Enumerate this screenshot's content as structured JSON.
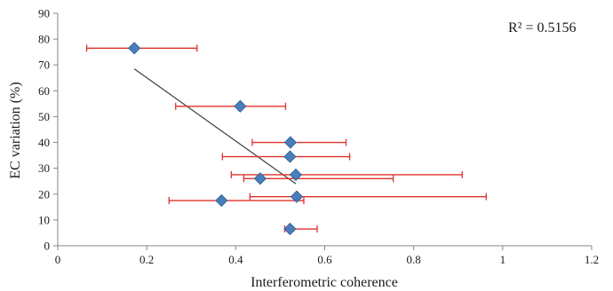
{
  "chart_data": {
    "type": "scatter",
    "xlabel": "Interferometric coherence",
    "ylabel": "EC variation (%)",
    "xlim": [
      0,
      1.2
    ],
    "ylim": [
      0,
      90
    ],
    "x_ticks": [
      "0",
      "0.2",
      "0.4",
      "0.6",
      "0.8",
      "1",
      "1.2"
    ],
    "y_ticks": [
      "0",
      "10",
      "20",
      "30",
      "40",
      "50",
      "60",
      "70",
      "80",
      "90"
    ],
    "grid": false,
    "annotation": "R² = 0.5156",
    "marker": "diamond",
    "colors": {
      "marker": "#4a7ebb",
      "marker_edge": "#2c5a92",
      "error_bar": "#e0302c",
      "trendline": "#404040"
    },
    "points": [
      {
        "x": 0.172,
        "y": 76.5,
        "xerr_low": 0.065,
        "xerr_high": 0.313
      },
      {
        "x": 0.41,
        "y": 54,
        "xerr_low": 0.265,
        "xerr_high": 0.512
      },
      {
        "x": 0.523,
        "y": 40,
        "xerr_low": 0.437,
        "xerr_high": 0.648
      },
      {
        "x": 0.522,
        "y": 34.5,
        "xerr_low": 0.37,
        "xerr_high": 0.656
      },
      {
        "x": 0.535,
        "y": 27.5,
        "xerr_low": 0.39,
        "xerr_high": 0.909
      },
      {
        "x": 0.455,
        "y": 26,
        "xerr_low": 0.418,
        "xerr_high": 0.754
      },
      {
        "x": 0.537,
        "y": 19,
        "xerr_low": 0.432,
        "xerr_high": 0.963
      },
      {
        "x": 0.368,
        "y": 17.5,
        "xerr_low": 0.25,
        "xerr_high": 0.553
      },
      {
        "x": 0.522,
        "y": 6.5,
        "xerr_low": 0.51,
        "xerr_high": 0.583
      }
    ],
    "trendline": {
      "x": [
        0.172,
        0.535
      ],
      "y": [
        68.5,
        24
      ]
    }
  }
}
